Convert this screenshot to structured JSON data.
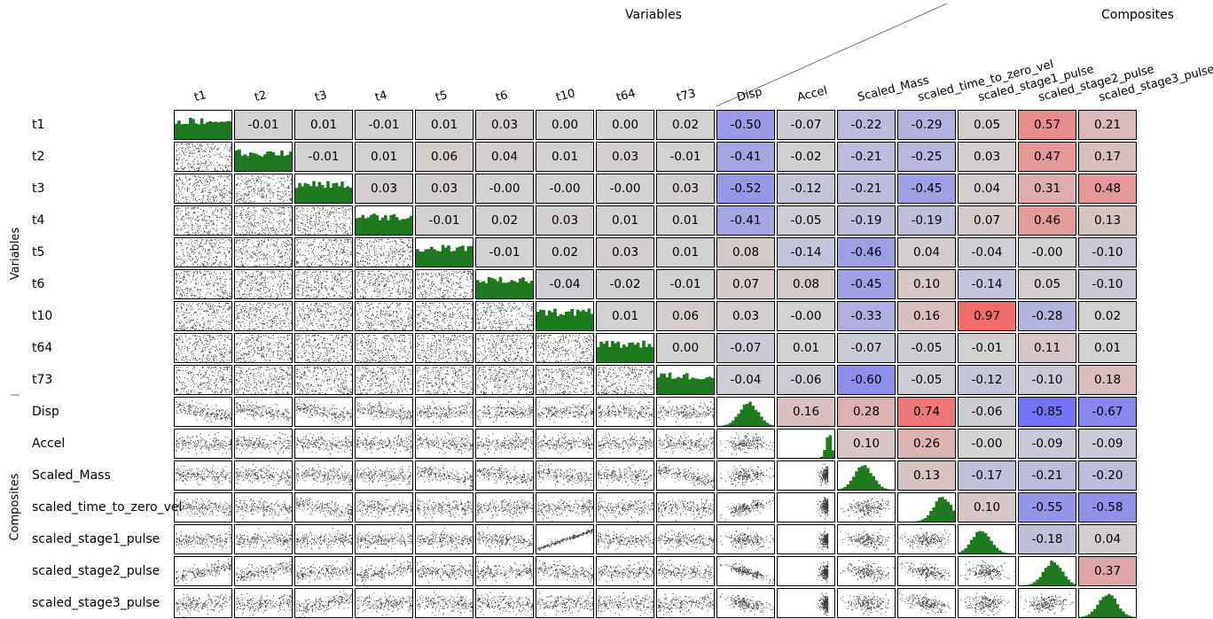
{
  "chart_data": {
    "type": "scatter-matrix",
    "group_labels": {
      "columns_variables": "Variables",
      "columns_composites": "Composites",
      "rows_variables": "Variables",
      "rows_composites": "Composites"
    },
    "variables": [
      "t1",
      "t2",
      "t3",
      "t4",
      "t5",
      "t6",
      "t10",
      "t64",
      "t73",
      "Disp",
      "Accel",
      "Scaled_Mass",
      "scaled_time_to_zero_vel",
      "scaled_stage1_pulse",
      "scaled_stage2_pulse",
      "scaled_stage3_pulse"
    ],
    "variable_group_count": 9,
    "correlation_labels": [
      [
        null,
        "-0.01",
        "0.01",
        "-0.01",
        "0.01",
        "0.03",
        "0.00",
        "0.00",
        "0.02",
        "-0.50",
        "-0.07",
        "-0.22",
        "-0.29",
        "0.05",
        "0.57",
        "0.21"
      ],
      [
        null,
        null,
        "-0.01",
        "0.01",
        "0.06",
        "0.04",
        "0.01",
        "0.03",
        "-0.01",
        "-0.41",
        "-0.02",
        "-0.21",
        "-0.25",
        "0.03",
        "0.47",
        "0.17"
      ],
      [
        null,
        null,
        null,
        "0.03",
        "0.03",
        "-0.00",
        "-0.00",
        "-0.00",
        "0.03",
        "-0.52",
        "-0.12",
        "-0.21",
        "-0.45",
        "0.04",
        "0.31",
        "0.48"
      ],
      [
        null,
        null,
        null,
        null,
        "-0.01",
        "0.02",
        "0.03",
        "0.01",
        "0.01",
        "-0.41",
        "-0.05",
        "-0.19",
        "-0.19",
        "0.07",
        "0.46",
        "0.13"
      ],
      [
        null,
        null,
        null,
        null,
        null,
        "-0.01",
        "0.02",
        "0.03",
        "0.01",
        "0.08",
        "-0.14",
        "-0.46",
        "0.04",
        "-0.04",
        "-0.00",
        "-0.10"
      ],
      [
        null,
        null,
        null,
        null,
        null,
        null,
        "-0.04",
        "-0.02",
        "-0.01",
        "0.07",
        "0.08",
        "-0.45",
        "0.10",
        "-0.14",
        "0.05",
        "-0.10"
      ],
      [
        null,
        null,
        null,
        null,
        null,
        null,
        null,
        "0.01",
        "0.06",
        "0.03",
        "-0.00",
        "-0.33",
        "0.16",
        "0.97",
        "-0.28",
        "0.02"
      ],
      [
        null,
        null,
        null,
        null,
        null,
        null,
        null,
        null,
        "0.00",
        "-0.07",
        "0.01",
        "-0.07",
        "-0.05",
        "-0.01",
        "0.11",
        "0.01"
      ],
      [
        null,
        null,
        null,
        null,
        null,
        null,
        null,
        null,
        null,
        "-0.04",
        "-0.06",
        "-0.60",
        "-0.05",
        "-0.12",
        "-0.10",
        "0.18"
      ],
      [
        null,
        null,
        null,
        null,
        null,
        null,
        null,
        null,
        null,
        null,
        "0.16",
        "0.28",
        "0.74",
        "-0.06",
        "-0.85",
        "-0.67"
      ],
      [
        null,
        null,
        null,
        null,
        null,
        null,
        null,
        null,
        null,
        null,
        null,
        "0.10",
        "0.26",
        "-0.00",
        "-0.09",
        "-0.09"
      ],
      [
        null,
        null,
        null,
        null,
        null,
        null,
        null,
        null,
        null,
        null,
        null,
        null,
        "0.13",
        "-0.17",
        "-0.21",
        "-0.20"
      ],
      [
        null,
        null,
        null,
        null,
        null,
        null,
        null,
        null,
        null,
        null,
        null,
        null,
        null,
        "0.10",
        "-0.55",
        "-0.58"
      ],
      [
        null,
        null,
        null,
        null,
        null,
        null,
        null,
        null,
        null,
        null,
        null,
        null,
        null,
        null,
        "-0.18",
        "0.04"
      ],
      [
        null,
        null,
        null,
        null,
        null,
        null,
        null,
        null,
        null,
        null,
        null,
        null,
        null,
        null,
        null,
        "0.37"
      ],
      [
        null,
        null,
        null,
        null,
        null,
        null,
        null,
        null,
        null,
        null,
        null,
        null,
        null,
        null,
        null,
        null
      ]
    ],
    "diagonal": "histogram",
    "lower": "scatter",
    "upper": "correlation",
    "colors": {
      "histogram": "#1f7a1f",
      "point": "#333333",
      "neutral": "#d3d3d3",
      "positive": "#f26b6b",
      "negative": "#7373f5"
    }
  }
}
